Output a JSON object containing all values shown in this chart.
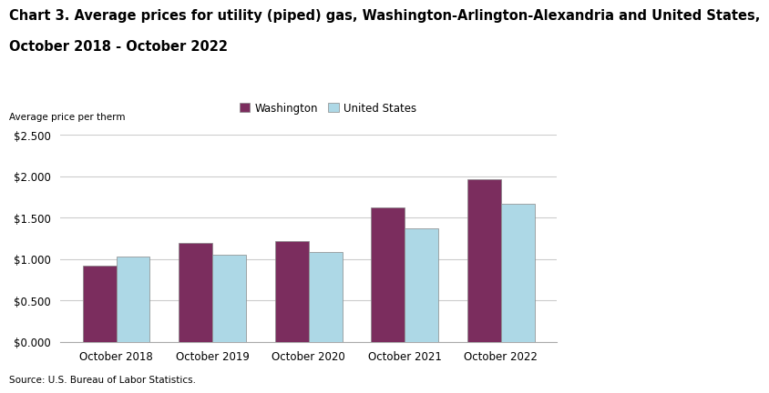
{
  "title_line1": "Chart 3. Average prices for utility (piped) gas, Washington-Arlington-Alexandria and United States,",
  "title_line2": "October 2018 - October 2022",
  "ylabel": "Average price per therm",
  "source": "Source: U.S. Bureau of Labor Statistics.",
  "categories": [
    "October 2018",
    "October 2019",
    "October 2020",
    "October 2021",
    "October 2022"
  ],
  "washington": [
    0.92,
    1.19,
    1.22,
    1.62,
    1.96
  ],
  "us": [
    1.03,
    1.05,
    1.08,
    1.37,
    1.67
  ],
  "washington_color": "#7B2D5E",
  "us_color": "#ADD8E6",
  "bar_edge_color": "#888888",
  "legend_labels": [
    "Washington",
    "United States"
  ],
  "ylim": [
    0.0,
    2.5
  ],
  "yticks": [
    0.0,
    0.5,
    1.0,
    1.5,
    2.0,
    2.5
  ],
  "ytick_labels": [
    "$0.000",
    "$0.500",
    "$1.000",
    "$1.500",
    "$2.000",
    "$2.500"
  ],
  "bar_width": 0.35,
  "background_color": "#ffffff",
  "grid_color": "#cccccc",
  "title_fontsize": 10.5,
  "axis_label_fontsize": 7.5,
  "tick_fontsize": 8.5,
  "legend_fontsize": 8.5,
  "source_fontsize": 7.5
}
